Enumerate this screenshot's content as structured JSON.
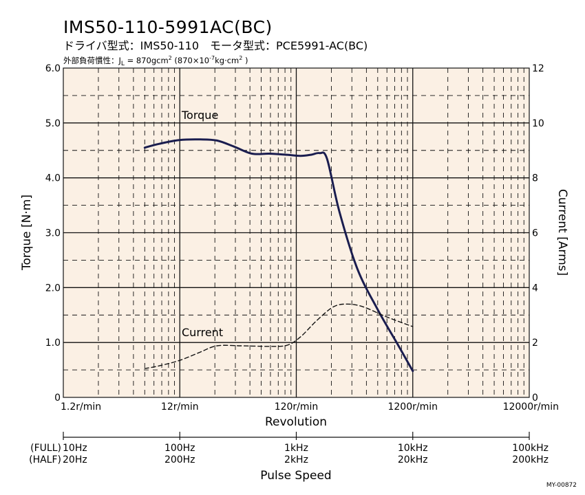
{
  "title": "IMS50-110-5991AC(BC)",
  "subtitle": "ドライバ型式：IMS50-110　モータ型式：PCE5991-AC(BC)",
  "inertia": {
    "prefix": "外部負荷慣性：J",
    "subscript": "L",
    "value": " = 870gcm",
    "sup1": "2",
    "paren": " (870×10",
    "sup2": "-7",
    "unit": "kg·cm",
    "sup3": "2",
    "close": " )"
  },
  "corner_id": "MY-00872",
  "colors": {
    "background": "#fbf0e4",
    "torque": "#1a1d4f",
    "current": "#111111",
    "grid": "#111111"
  },
  "pulse_axis": {
    "full_label": "(FULL)",
    "half_label": "(HALF)",
    "full": [
      "10Hz",
      "100Hz",
      "1kHz",
      "10kHz",
      "100kHz"
    ],
    "half": [
      "20Hz",
      "200Hz",
      "2kHz",
      "20kHz",
      "200kHz"
    ],
    "label": "Pulse Speed"
  },
  "chart_data": {
    "type": "line",
    "xscale": "log",
    "xlim": [
      1.2,
      12000
    ],
    "x_ticks": [
      1.2,
      12,
      120,
      1200,
      12000
    ],
    "x_tick_labels": [
      "1.2r/min",
      "12r/min",
      "120r/min",
      "1200r/min",
      "12000r/min"
    ],
    "xlabel": "Revolution",
    "ylabel": "Torque  [N·m]",
    "ylim": [
      0,
      6.0
    ],
    "y_ticks": [
      "0",
      "1.0",
      "2.0",
      "3.0",
      "4.0",
      "5.0",
      "6.0"
    ],
    "y2label": "Current  [Arms]",
    "y2lim": [
      0,
      12
    ],
    "y2_ticks": [
      "0",
      "2",
      "4",
      "6",
      "8",
      "10",
      "12"
    ],
    "grid": true,
    "series": [
      {
        "name": "Torque",
        "axis": "left",
        "style": "solid",
        "x": [
          6.0,
          8.0,
          12.0,
          18.0,
          25.0,
          35.0,
          50.0,
          70.0,
          100.0,
          130.0,
          160.0,
          190.0,
          220.0,
          280.0,
          400.0,
          600.0,
          900.0,
          1200.0
        ],
        "y": [
          4.55,
          4.62,
          4.69,
          4.7,
          4.68,
          4.57,
          4.44,
          4.44,
          4.42,
          4.4,
          4.42,
          4.45,
          4.35,
          3.4,
          2.35,
          1.6,
          0.95,
          0.48
        ]
      },
      {
        "name": "Current",
        "axis": "right",
        "style": "dashed",
        "x": [
          6.0,
          8.0,
          12.0,
          18.0,
          25.0,
          40.0,
          70.0,
          100.0,
          130.0,
          180.0,
          250.0,
          330.0,
          450.0,
          700.0,
          1000.0,
          1200.0
        ],
        "y": [
          1.05,
          1.15,
          1.35,
          1.65,
          1.88,
          1.88,
          1.86,
          1.9,
          2.2,
          2.8,
          3.3,
          3.4,
          3.3,
          2.95,
          2.7,
          2.58
        ]
      }
    ]
  }
}
